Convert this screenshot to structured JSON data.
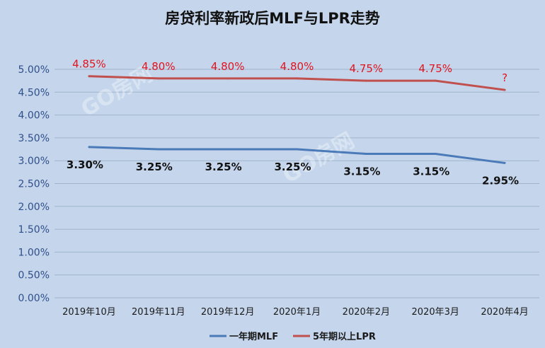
{
  "chart_data": {
    "type": "line",
    "title": "房贷利率新政后MLF与LPR走势",
    "categories": [
      "2019年10月",
      "2019年11月",
      "2019年12月",
      "2020年1月",
      "2020年2月",
      "2020年3月",
      "2020年4月"
    ],
    "y_ticks": [
      "0.00%",
      "0.50%",
      "1.00%",
      "1.50%",
      "2.00%",
      "2.50%",
      "3.00%",
      "3.50%",
      "4.00%",
      "4.50%",
      "5.00%"
    ],
    "ylim": [
      0,
      5.0
    ],
    "grid": true,
    "legend_position": "bottom",
    "series": [
      {
        "name": "一年期MLF",
        "color": "#4a7ab8",
        "values": [
          3.3,
          3.25,
          3.25,
          3.25,
          3.15,
          3.15,
          2.95
        ],
        "labels": [
          "3.30%",
          "3.25%",
          "3.25%",
          "3.25%",
          "3.15%",
          "3.15%",
          "2.95%"
        ],
        "label_color": "#111111"
      },
      {
        "name": "5年期以上LPR",
        "color": "#c0504d",
        "values": [
          4.85,
          4.8,
          4.8,
          4.8,
          4.75,
          4.75,
          4.55
        ],
        "labels": [
          "4.85%",
          "4.80%",
          "4.80%",
          "4.80%",
          "4.75%",
          "4.75%",
          "?"
        ],
        "label_color": "#e0141e"
      }
    ],
    "watermark": "GO房网"
  }
}
